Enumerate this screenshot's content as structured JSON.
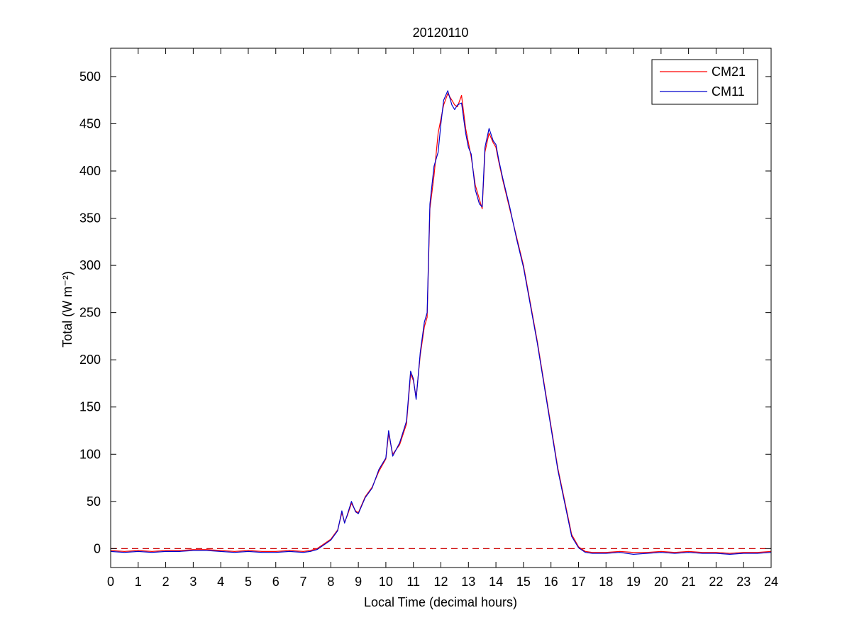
{
  "chart_data": {
    "type": "line",
    "title": "20120110",
    "xlabel": "Local Time (decimal hours)",
    "ylabel": "Total (W m⁻²)",
    "xlim": [
      0,
      24
    ],
    "ylim": [
      -20,
      530
    ],
    "x_ticks": [
      0,
      1,
      2,
      3,
      4,
      5,
      6,
      7,
      8,
      9,
      10,
      11,
      12,
      13,
      14,
      15,
      16,
      17,
      18,
      19,
      20,
      21,
      22,
      23,
      24
    ],
    "y_ticks": [
      0,
      50,
      100,
      150,
      200,
      250,
      300,
      350,
      400,
      450,
      500
    ],
    "grid": false,
    "legend": {
      "position": "top-right",
      "entries": [
        "CM21",
        "CM11"
      ]
    },
    "reference_line": {
      "y": 0,
      "style": "dashed",
      "color": "#cc0000"
    },
    "x": [
      0,
      0.5,
      1,
      1.5,
      2,
      2.5,
      3,
      3.5,
      4,
      4.5,
      5,
      5.5,
      6,
      6.5,
      7,
      7.25,
      7.5,
      7.75,
      8,
      8.25,
      8.4,
      8.5,
      8.6,
      8.75,
      8.9,
      9,
      9.25,
      9.5,
      9.75,
      10,
      10.1,
      10.25,
      10.5,
      10.75,
      10.9,
      11,
      11.1,
      11.25,
      11.4,
      11.5,
      11.6,
      11.75,
      11.9,
      12,
      12.1,
      12.25,
      12.4,
      12.5,
      12.6,
      12.75,
      12.9,
      13,
      13.1,
      13.25,
      13.4,
      13.5,
      13.6,
      13.75,
      13.9,
      14,
      14.1,
      14.25,
      14.5,
      14.75,
      15,
      15.25,
      15.5,
      15.75,
      16,
      16.25,
      16.5,
      16.75,
      17,
      17.25,
      17.5,
      18,
      18.5,
      19,
      19.5,
      20,
      20.5,
      21,
      21.5,
      22,
      22.5,
      23,
      23.5,
      24
    ],
    "series": [
      {
        "name": "CM21",
        "color": "#ff0000",
        "values": [
          -2,
          -3,
          -2,
          -3,
          -2,
          -2,
          -1,
          -1,
          -2,
          -3,
          -2,
          -3,
          -3,
          -2,
          -3,
          -2,
          0,
          5,
          10,
          20,
          38,
          28,
          35,
          48,
          40,
          38,
          55,
          65,
          82,
          95,
          122,
          100,
          110,
          132,
          185,
          178,
          160,
          205,
          235,
          245,
          360,
          395,
          440,
          455,
          470,
          482,
          475,
          470,
          468,
          480,
          445,
          430,
          415,
          385,
          370,
          360,
          420,
          440,
          430,
          425,
          410,
          390,
          360,
          330,
          300,
          260,
          220,
          175,
          130,
          85,
          50,
          15,
          2,
          -3,
          -4,
          -4,
          -3,
          -4,
          -4,
          -3,
          -4,
          -3,
          -4,
          -4,
          -5,
          -4,
          -4,
          -3
        ]
      },
      {
        "name": "CM11",
        "color": "#0000cc",
        "values": [
          -3,
          -4,
          -3,
          -4,
          -3,
          -3,
          -2,
          -2,
          -3,
          -4,
          -3,
          -4,
          -4,
          -3,
          -4,
          -3,
          -1,
          4,
          9,
          19,
          40,
          27,
          36,
          50,
          39,
          37,
          54,
          64,
          84,
          96,
          125,
          98,
          112,
          135,
          188,
          180,
          158,
          208,
          240,
          250,
          365,
          405,
          420,
          450,
          475,
          485,
          470,
          465,
          470,
          472,
          440,
          425,
          418,
          380,
          365,
          362,
          425,
          445,
          432,
          428,
          412,
          392,
          362,
          328,
          298,
          258,
          218,
          173,
          128,
          83,
          48,
          13,
          1,
          -4,
          -5,
          -5,
          -4,
          -6,
          -5,
          -4,
          -5,
          -4,
          -5,
          -5,
          -6,
          -5,
          -5,
          -4
        ]
      }
    ]
  },
  "axes_title": "20120110"
}
